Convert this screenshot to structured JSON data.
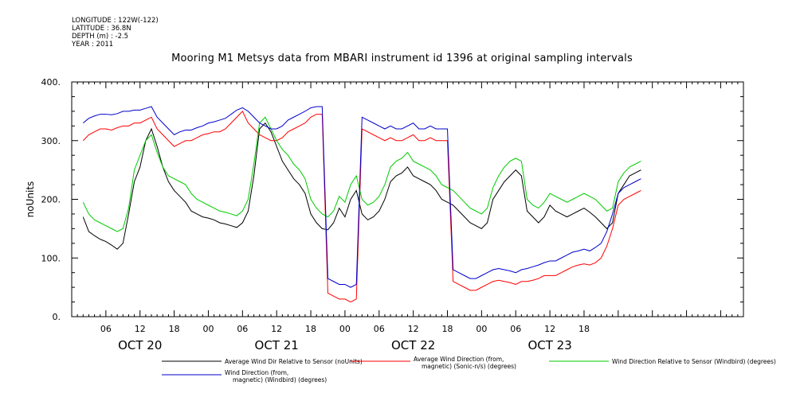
{
  "metadata": {
    "longitude": "LONGITUDE : 122W(-122)",
    "latitude": "LATITUDE : 36.8N",
    "depth": "DEPTH (m) : -2.5",
    "year": "YEAR : 2011"
  },
  "chart_data": {
    "type": "line",
    "title": "Mooring M1 Metsys data from MBARI instrument id 1396 at original sampling intervals",
    "ylabel": "noUnits",
    "xlabel": "",
    "ylim": [
      0,
      400
    ],
    "y_ticks": [
      0,
      100,
      200,
      300,
      400
    ],
    "x_range_hours": [
      0,
      118
    ],
    "x_tick_labels": [
      {
        "hour": 6,
        "label": "06"
      },
      {
        "hour": 12,
        "label": "12"
      },
      {
        "hour": 18,
        "label": "18"
      },
      {
        "hour": 24,
        "label": "00"
      },
      {
        "hour": 30,
        "label": "06"
      },
      {
        "hour": 36,
        "label": "12"
      },
      {
        "hour": 42,
        "label": "18"
      },
      {
        "hour": 48,
        "label": "00"
      },
      {
        "hour": 54,
        "label": "06"
      },
      {
        "hour": 60,
        "label": "12"
      },
      {
        "hour": 66,
        "label": "18"
      },
      {
        "hour": 72,
        "label": "00"
      },
      {
        "hour": 78,
        "label": "06"
      },
      {
        "hour": 84,
        "label": "12"
      },
      {
        "hour": 90,
        "label": "18"
      }
    ],
    "date_labels": [
      {
        "hour": 12,
        "label": "OCT 20"
      },
      {
        "hour": 36,
        "label": "OCT 21"
      },
      {
        "hour": 60,
        "label": "OCT 22"
      },
      {
        "hour": 84,
        "label": "OCT 23"
      }
    ],
    "grid": false,
    "series": [
      {
        "name": "Average Wind Dir Relative to Sensor (noUnits)",
        "color": "#000000",
        "x": [
          0,
          1,
          2,
          3,
          4,
          5,
          6,
          7,
          8,
          9,
          10,
          11,
          12,
          13,
          14,
          15,
          16,
          17,
          18,
          19,
          20,
          21,
          22,
          23,
          24,
          25,
          26,
          27,
          28,
          29,
          30,
          31,
          32,
          33,
          34,
          35,
          36,
          37,
          38,
          39,
          40,
          41,
          42,
          43,
          44,
          45,
          46,
          47,
          48,
          49,
          50,
          51,
          52,
          53,
          54,
          55,
          56,
          57,
          58,
          59,
          60,
          61,
          62,
          63,
          64,
          65,
          66,
          67,
          68,
          69,
          70,
          71,
          72,
          73,
          74,
          75,
          76,
          77,
          78,
          79,
          80,
          81,
          82,
          83,
          84,
          85,
          86,
          87,
          88,
          89,
          90,
          91,
          92,
          93,
          94,
          95,
          96,
          97,
          98
        ],
        "y": [
          170,
          145,
          138,
          132,
          128,
          122,
          115,
          125,
          175,
          230,
          255,
          300,
          320,
          290,
          255,
          230,
          215,
          205,
          195,
          180,
          175,
          170,
          168,
          165,
          160,
          158,
          155,
          152,
          160,
          180,
          240,
          320,
          330,
          315,
          290,
          265,
          250,
          235,
          225,
          210,
          175,
          160,
          150,
          148,
          160,
          185,
          170,
          200,
          215,
          175,
          165,
          170,
          180,
          200,
          230,
          240,
          245,
          255,
          240,
          235,
          230,
          225,
          215,
          200,
          195,
          190,
          180,
          170,
          160,
          155,
          150,
          160,
          200,
          215,
          230,
          240,
          250,
          240,
          180,
          170,
          160,
          170,
          190,
          180,
          175,
          170,
          175,
          180,
          185,
          178,
          170,
          160,
          150,
          160,
          210,
          225,
          240,
          245,
          250
        ]
      },
      {
        "name": "Average Wind Direction (from, magnetic) (Sonic-n/s) (degrees)",
        "color": "#ff0000",
        "x": [
          0,
          1,
          2,
          3,
          4,
          5,
          6,
          7,
          8,
          9,
          10,
          11,
          12,
          13,
          14,
          15,
          16,
          17,
          18,
          19,
          20,
          21,
          22,
          23,
          24,
          25,
          26,
          27,
          28,
          29,
          30,
          31,
          32,
          33,
          34,
          35,
          36,
          37,
          38,
          39,
          40,
          41,
          42,
          43,
          44,
          45,
          46,
          47,
          48,
          49,
          50,
          51,
          52,
          53,
          54,
          55,
          56,
          57,
          58,
          59,
          60,
          61,
          62,
          63,
          64,
          65,
          66,
          67,
          68,
          69,
          70,
          71,
          72,
          73,
          74,
          75,
          76,
          77,
          78,
          79,
          80,
          81,
          82,
          83,
          84,
          85,
          86,
          87,
          88,
          89,
          90,
          91,
          92,
          93,
          94,
          95,
          96,
          97,
          98
        ],
        "y": [
          300,
          310,
          315,
          320,
          320,
          318,
          322,
          325,
          325,
          330,
          330,
          335,
          340,
          320,
          310,
          300,
          290,
          295,
          300,
          300,
          305,
          310,
          312,
          315,
          315,
          320,
          330,
          340,
          350,
          330,
          320,
          310,
          305,
          300,
          300,
          305,
          315,
          320,
          325,
          330,
          340,
          345,
          345,
          40,
          35,
          30,
          30,
          25,
          30,
          320,
          315,
          310,
          305,
          300,
          305,
          300,
          300,
          305,
          310,
          300,
          300,
          305,
          300,
          300,
          300,
          60,
          55,
          50,
          45,
          45,
          50,
          55,
          60,
          62,
          60,
          58,
          55,
          60,
          60,
          62,
          65,
          70,
          70,
          70,
          75,
          80,
          85,
          88,
          90,
          88,
          92,
          100,
          120,
          150,
          190,
          200,
          205,
          210,
          215
        ]
      },
      {
        "name": "Wind Direction Relative to Sensor (Windbird) (degrees)",
        "color": "#00cc00",
        "x": [
          0,
          1,
          2,
          3,
          4,
          5,
          6,
          7,
          8,
          9,
          10,
          11,
          12,
          13,
          14,
          15,
          16,
          17,
          18,
          19,
          20,
          21,
          22,
          23,
          24,
          25,
          26,
          27,
          28,
          29,
          30,
          31,
          32,
          33,
          34,
          35,
          36,
          37,
          38,
          39,
          40,
          41,
          42,
          43,
          44,
          45,
          46,
          47,
          48,
          49,
          50,
          51,
          52,
          53,
          54,
          55,
          56,
          57,
          58,
          59,
          60,
          61,
          62,
          63,
          64,
          65,
          66,
          67,
          68,
          69,
          70,
          71,
          72,
          73,
          74,
          75,
          76,
          77,
          78,
          79,
          80,
          81,
          82,
          83,
          84,
          85,
          86,
          87,
          88,
          89,
          90,
          91,
          92,
          93,
          94,
          95,
          96,
          97,
          98
        ],
        "y": [
          195,
          175,
          165,
          160,
          155,
          150,
          145,
          150,
          185,
          250,
          275,
          300,
          310,
          280,
          255,
          240,
          235,
          230,
          225,
          210,
          200,
          195,
          190,
          185,
          180,
          178,
          175,
          172,
          180,
          200,
          260,
          330,
          340,
          320,
          300,
          285,
          275,
          260,
          250,
          235,
          200,
          185,
          175,
          170,
          180,
          205,
          195,
          225,
          240,
          200,
          190,
          195,
          205,
          225,
          255,
          265,
          270,
          280,
          265,
          260,
          255,
          250,
          240,
          225,
          220,
          215,
          205,
          195,
          185,
          180,
          175,
          185,
          220,
          240,
          255,
          265,
          270,
          265,
          200,
          190,
          185,
          195,
          210,
          205,
          200,
          195,
          200,
          205,
          210,
          205,
          200,
          190,
          180,
          185,
          230,
          245,
          255,
          260,
          265
        ]
      },
      {
        "name": "Wind Direction (from, magnetic) (Windbird) (degrees)",
        "color": "#0000cc",
        "x": [
          0,
          1,
          2,
          3,
          4,
          5,
          6,
          7,
          8,
          9,
          10,
          11,
          12,
          13,
          14,
          15,
          16,
          17,
          18,
          19,
          20,
          21,
          22,
          23,
          24,
          25,
          26,
          27,
          28,
          29,
          30,
          31,
          32,
          33,
          34,
          35,
          36,
          37,
          38,
          39,
          40,
          41,
          42,
          43,
          44,
          45,
          46,
          47,
          48,
          49,
          50,
          51,
          52,
          53,
          54,
          55,
          56,
          57,
          58,
          59,
          60,
          61,
          62,
          63,
          64,
          65,
          66,
          67,
          68,
          69,
          70,
          71,
          72,
          73,
          74,
          75,
          76,
          77,
          78,
          79,
          80,
          81,
          82,
          83,
          84,
          85,
          86,
          87,
          88,
          89,
          90,
          91,
          92,
          93,
          94,
          95,
          96,
          97,
          98
        ],
        "y": [
          330,
          338,
          342,
          345,
          345,
          344,
          346,
          350,
          350,
          352,
          352,
          355,
          358,
          340,
          330,
          320,
          310,
          315,
          318,
          318,
          322,
          325,
          330,
          332,
          335,
          338,
          345,
          352,
          356,
          350,
          340,
          330,
          325,
          320,
          320,
          325,
          335,
          340,
          345,
          350,
          356,
          358,
          358,
          65,
          60,
          55,
          55,
          50,
          55,
          340,
          335,
          330,
          325,
          320,
          325,
          320,
          320,
          325,
          330,
          320,
          320,
          325,
          320,
          320,
          320,
          80,
          75,
          70,
          65,
          65,
          70,
          75,
          80,
          82,
          80,
          78,
          75,
          80,
          82,
          85,
          88,
          92,
          95,
          95,
          100,
          105,
          110,
          112,
          115,
          112,
          118,
          125,
          145,
          175,
          210,
          220,
          225,
          230,
          235
        ]
      }
    ],
    "legend": "below chart, two rows"
  }
}
